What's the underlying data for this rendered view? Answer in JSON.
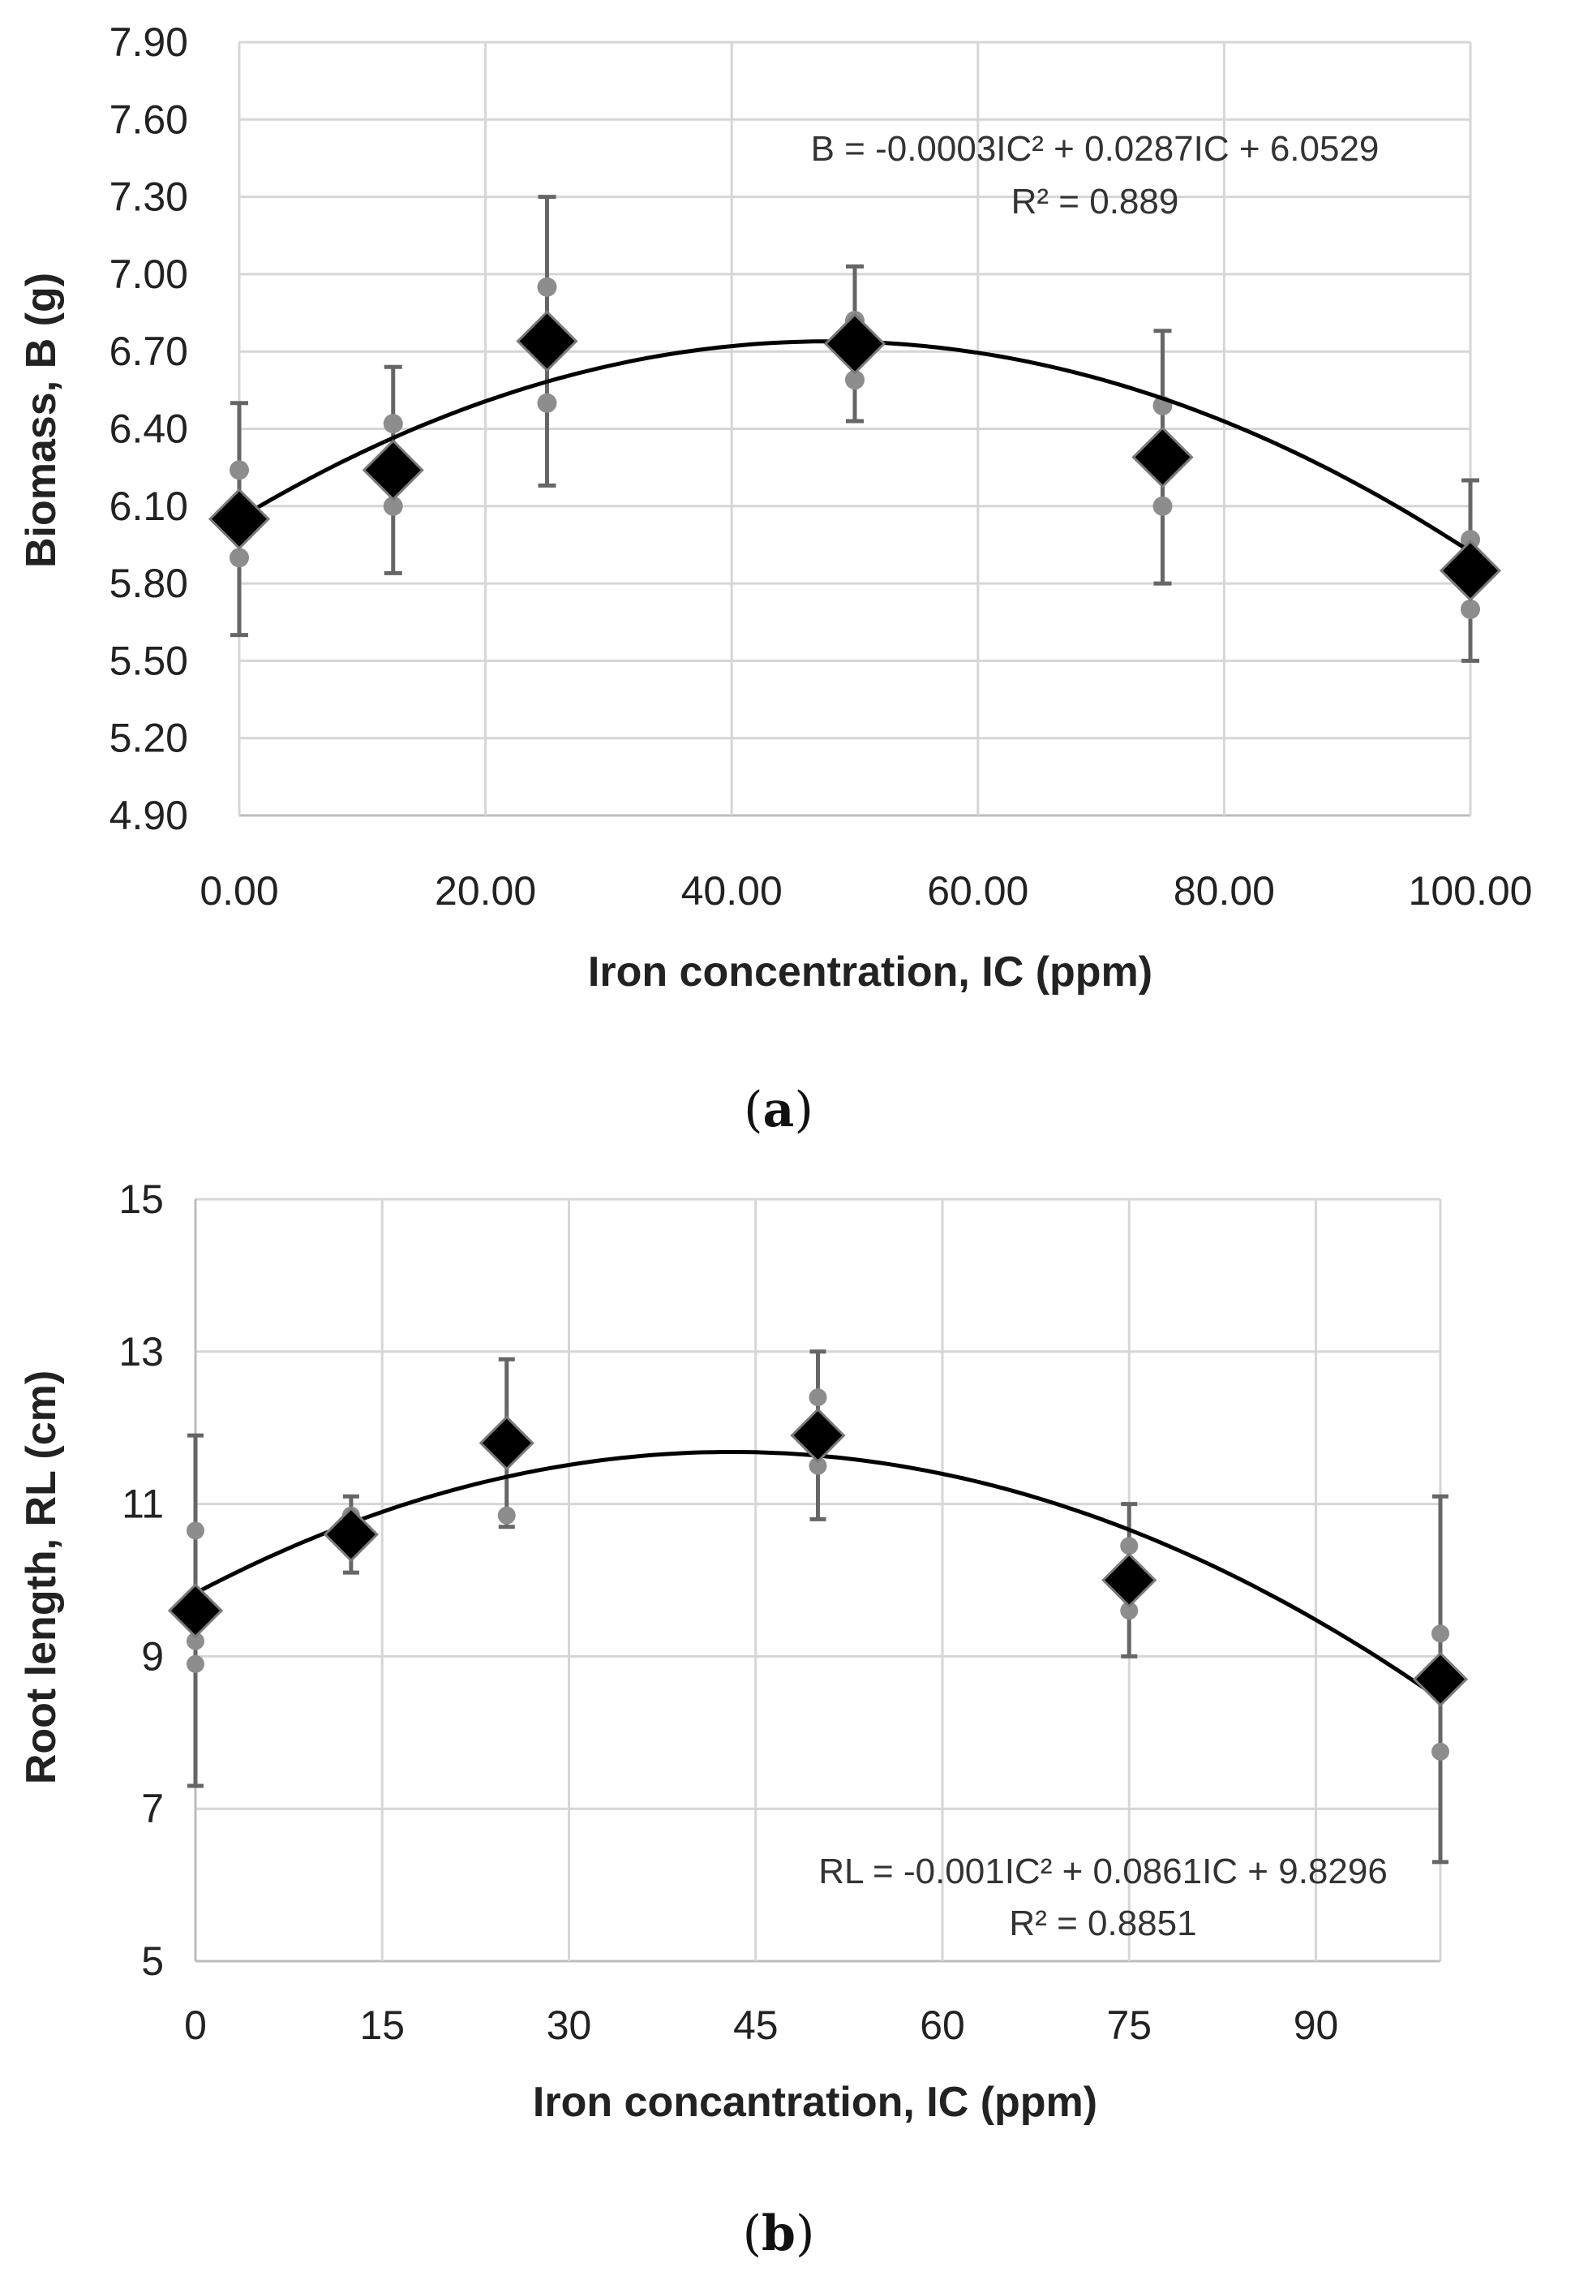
{
  "chart_data": [
    {
      "id": "a",
      "type": "scatter",
      "caption": "a",
      "xlabel": "Iron concentration, IC (ppm)",
      "ylabel": "Biomass, B (g)",
      "xlim": [
        0,
        100
      ],
      "ylim": [
        4.9,
        7.9
      ],
      "xticks": [
        0,
        20,
        40,
        60,
        80,
        100
      ],
      "yticks": [
        4.9,
        5.2,
        5.5,
        5.8,
        6.1,
        6.4,
        6.7,
        7.0,
        7.3,
        7.6,
        7.9
      ],
      "xtick_labels": [
        "0.00",
        "20.00",
        "40.00",
        "60.00",
        "80.00",
        "100.00"
      ],
      "ytick_labels": [
        "4.90",
        "5.20",
        "5.50",
        "5.80",
        "6.10",
        "6.40",
        "6.70",
        "7.00",
        "7.30",
        "7.60",
        "7.90"
      ],
      "grid": true,
      "x": [
        0,
        12.5,
        25,
        50,
        75,
        100
      ],
      "mean": [
        6.05,
        6.24,
        6.74,
        6.73,
        6.29,
        5.85
      ],
      "error": [
        0.45,
        0.4,
        0.56,
        0.3,
        0.49,
        0.35
      ],
      "replicates": [
        [
          6.24,
          6.0,
          5.9
        ],
        [
          6.42,
          6.2,
          6.1
        ],
        [
          6.95,
          6.8,
          6.5
        ],
        [
          6.82,
          6.78,
          6.59
        ],
        [
          6.49,
          6.3,
          6.1
        ],
        [
          5.97,
          5.9,
          5.7
        ]
      ],
      "fit": {
        "a": -0.0003,
        "b": 0.0287,
        "c": 6.0529,
        "x_range": [
          0,
          100
        ]
      },
      "equation": "B = -0.0003IC² + 0.0287IC + 6.0529",
      "r2": "R² = 0.889",
      "equation_position": "top-right"
    },
    {
      "id": "b",
      "type": "scatter",
      "caption": "b",
      "xlabel": "Iron concantration, IC (ppm)",
      "ylabel": "Root length, RL (cm)",
      "xlim": [
        0,
        100
      ],
      "ylim": [
        5,
        15
      ],
      "xticks": [
        0,
        15,
        30,
        45,
        60,
        75,
        90
      ],
      "yticks": [
        5,
        7,
        9,
        11,
        13,
        15
      ],
      "xtick_labels": [
        "0",
        "15",
        "30",
        "45",
        "60",
        "75",
        "90"
      ],
      "ytick_labels": [
        "5",
        "7",
        "9",
        "11",
        "13",
        "15"
      ],
      "grid": true,
      "x": [
        0,
        12.5,
        25,
        50,
        75,
        100
      ],
      "mean": [
        9.6,
        10.6,
        11.8,
        11.9,
        10.0,
        8.7
      ],
      "error": [
        2.3,
        0.5,
        1.1,
        1.1,
        1.0,
        2.4
      ],
      "replicates": [
        [
          10.65,
          9.2,
          8.9
        ],
        [
          10.85,
          10.5,
          10.4
        ],
        [
          11.8,
          11.75,
          10.85
        ],
        [
          12.4,
          11.75,
          11.5
        ],
        [
          10.45,
          9.9,
          9.6
        ],
        [
          9.3,
          7.75,
          8.7
        ]
      ],
      "fit": {
        "a": -0.001,
        "b": 0.0861,
        "c": 9.8296,
        "x_range": [
          0,
          100
        ]
      },
      "equation": "RL = -0.001IC² + 0.0861IC + 9.8296",
      "r2": "R² = 0.8851",
      "equation_position": "bottom-right"
    }
  ]
}
